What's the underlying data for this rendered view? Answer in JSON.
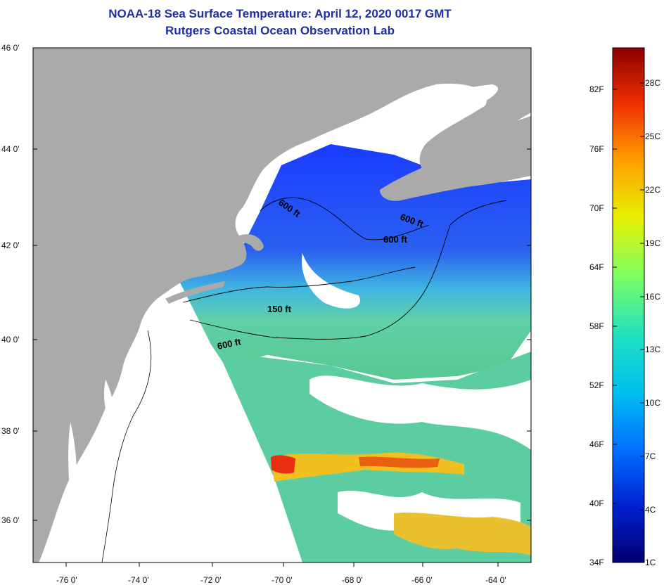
{
  "title": {
    "line1": "NOAA-18 Sea Surface Temperature:  April 12, 2020 0017 GMT",
    "line2": "Rutgers Coastal Ocean Observation Lab"
  },
  "map": {
    "lat_ticks": [
      "46 0'",
      "44 0'",
      "42 0'",
      "40 0'",
      "38 0'",
      "36 0'"
    ],
    "lon_ticks": [
      "-76 0'",
      "-74 0'",
      "-72 0'",
      "-70 0'",
      "-68 0'",
      "-66 0'",
      "-64 0'"
    ],
    "contour_labels": [
      "600 ft",
      "600 ft",
      "600 ft",
      "150 ft",
      "600 ft"
    ],
    "colors": {
      "land": "#aaaaaa",
      "cloud": "#ffffff",
      "cold": "#1a3cff",
      "cool": "#2ab5e8",
      "mild": "#58c8a0",
      "warm": "#f0c020",
      "hot": "#e83010"
    }
  },
  "colorbar": {
    "fahrenheit": [
      "82F",
      "76F",
      "70F",
      "64F",
      "58F",
      "52F",
      "46F",
      "40F",
      "34F"
    ],
    "celsius": [
      "28C",
      "25C",
      "22C",
      "19C",
      "16C",
      "13C",
      "10C",
      "7C",
      "4C",
      "1C"
    ],
    "gradient": [
      "#00006e",
      "#0020d0",
      "#0070ff",
      "#00c0f0",
      "#20e0c0",
      "#80ff60",
      "#e8f000",
      "#ffa000",
      "#f03000",
      "#8a0000"
    ]
  }
}
